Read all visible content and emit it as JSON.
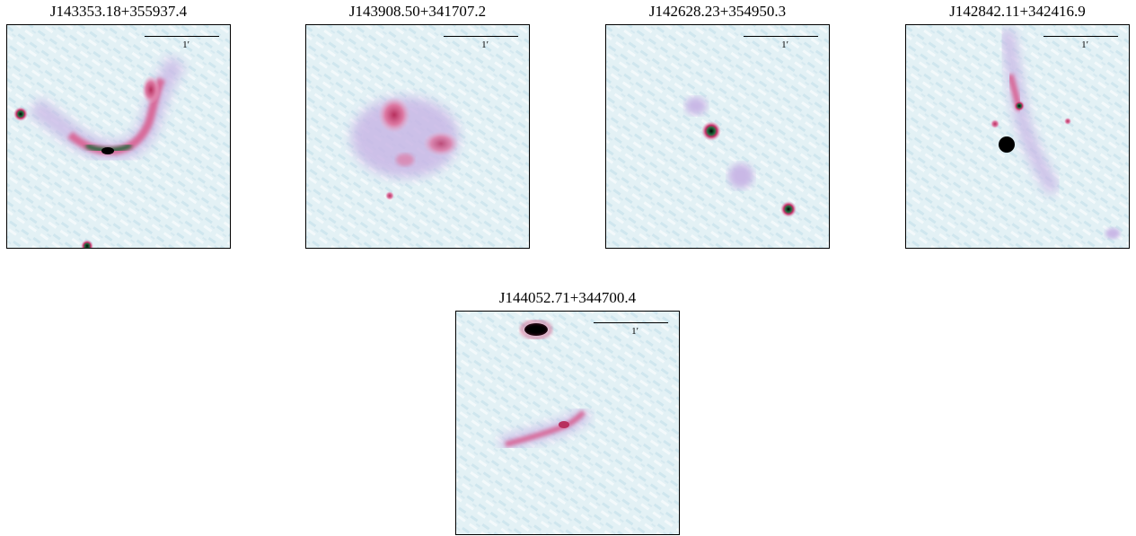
{
  "panels": [
    {
      "title": "J143353.18+355937.4",
      "scale_label": "1′"
    },
    {
      "title": "J143908.50+341707.2",
      "scale_label": "1′"
    },
    {
      "title": "J142628.23+354950.3",
      "scale_label": "1′"
    },
    {
      "title": "J142842.11+342416.9",
      "scale_label": "1′"
    },
    {
      "title": "J144052.71+344700.4",
      "scale_label": "1′"
    }
  ],
  "colors": {
    "background_noise": "#dfeef4",
    "emission_faint": "#c9b8e6",
    "emission_mid": "#d86a9a",
    "emission_peak": "#1b6b3a",
    "core": "#000000"
  }
}
